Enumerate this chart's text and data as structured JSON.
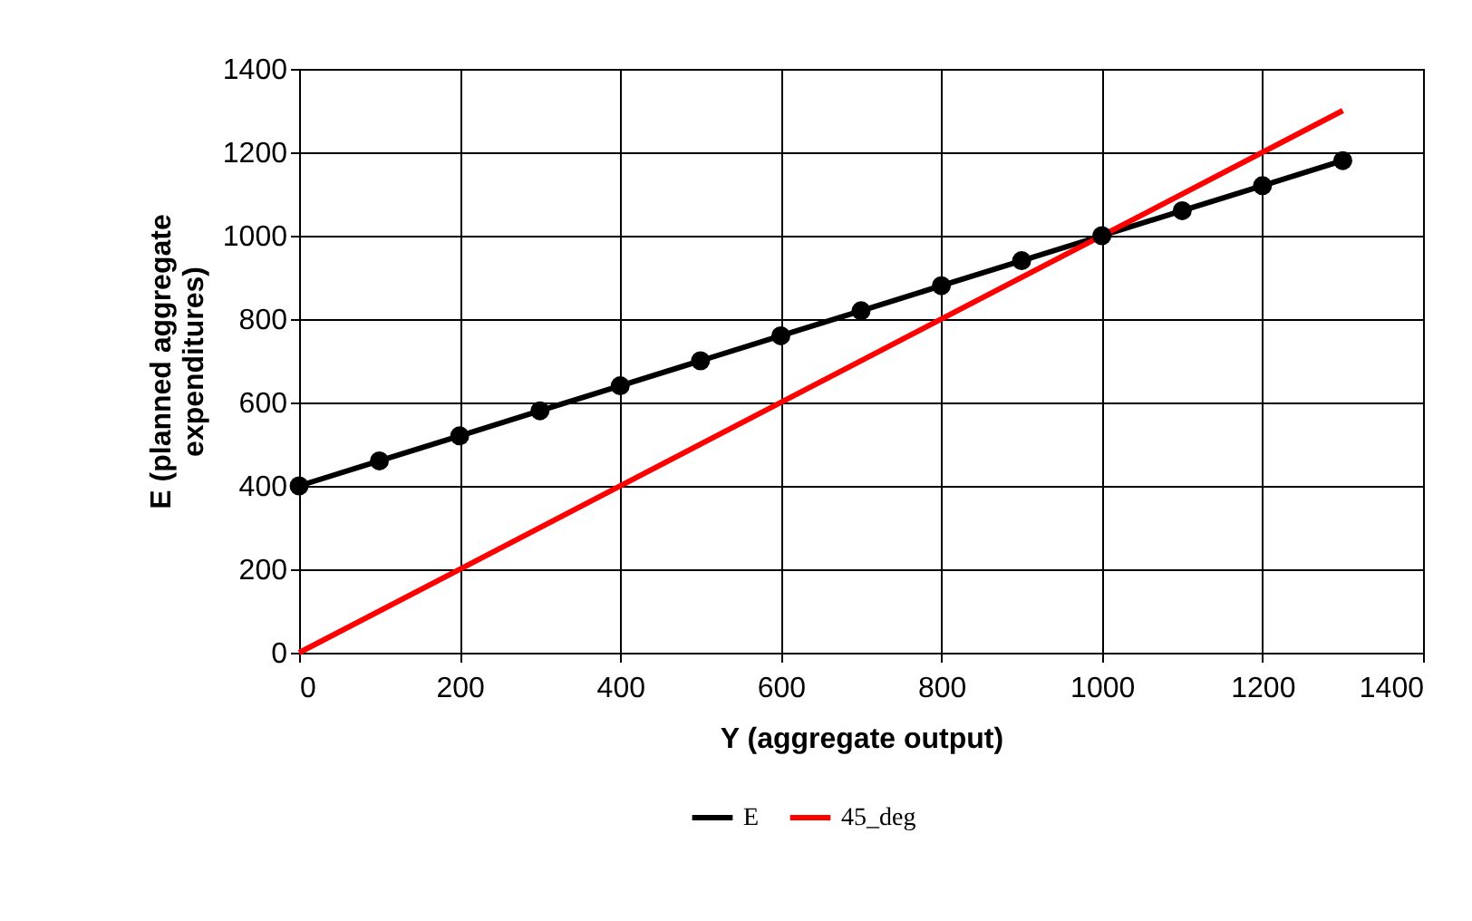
{
  "chart_data": {
    "type": "line",
    "xlabel": "Y (aggregate output)",
    "ylabel": "E (planned aggregate expenditures)",
    "xlim": [
      0,
      1400
    ],
    "xticks": [
      0,
      200,
      400,
      600,
      800,
      1000,
      1200,
      1400
    ],
    "ylim": [
      0,
      1400
    ],
    "yticks": [
      0,
      200,
      400,
      600,
      800,
      1000,
      1200,
      1400
    ],
    "grid": true,
    "legend": "bottom",
    "line_style": "solid",
    "series": [
      {
        "name": "E",
        "color": "#000000",
        "marker": "circle",
        "x": [
          0,
          100,
          200,
          300,
          400,
          500,
          600,
          700,
          800,
          900,
          1000,
          1100,
          1200,
          1300
        ],
        "values": [
          400,
          460,
          520,
          580,
          640,
          700,
          760,
          820,
          880,
          940,
          1000,
          1060,
          1120,
          1180
        ]
      },
      {
        "name": "45_deg",
        "color": "#ff0000",
        "marker": "none",
        "x": [
          0,
          1300
        ],
        "values": [
          0,
          1300
        ]
      }
    ]
  }
}
